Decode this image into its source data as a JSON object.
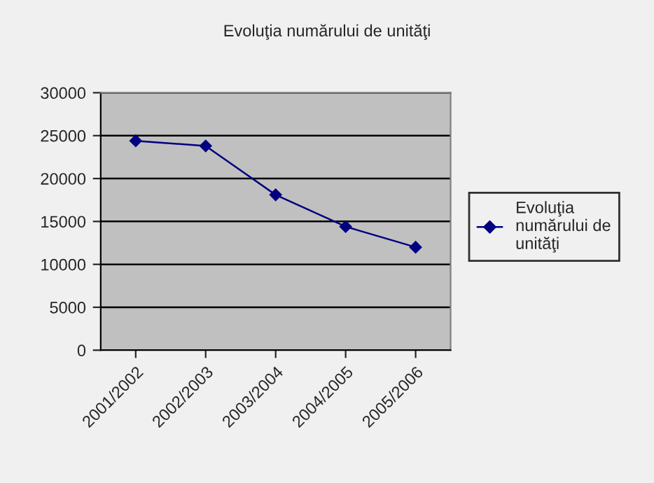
{
  "chart_data": {
    "type": "line",
    "title": "Evoluţia numărului de unităţi",
    "categories": [
      "2001/2002",
      "2002/2003",
      "2003/2004",
      "2004/2005",
      "2005/2006"
    ],
    "series": [
      {
        "name": "Evoluţia numărului de unităţi",
        "color": "#000080",
        "values": [
          24400,
          23800,
          18100,
          14400,
          12000
        ]
      }
    ],
    "ylim": [
      0,
      30000
    ],
    "yticks": [
      0,
      5000,
      10000,
      15000,
      20000,
      25000,
      30000
    ],
    "grid": "y",
    "legend": "right",
    "marker": "diamond",
    "line_style": "solid"
  }
}
